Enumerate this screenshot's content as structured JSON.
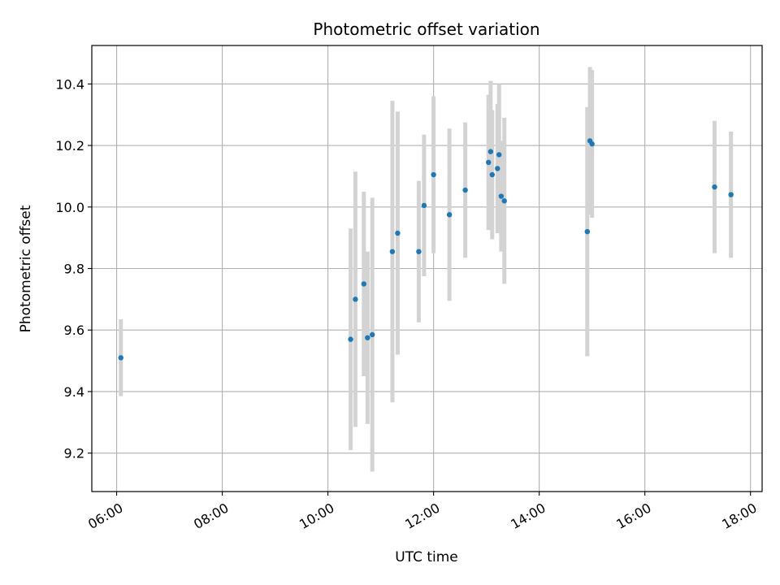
{
  "chart_data": {
    "type": "scatter",
    "title": "Photometric offset variation",
    "xlabel": "UTC time",
    "ylabel": "Photometric offset",
    "x_unit": "hours UTC",
    "xlim": [
      5.53,
      18.22
    ],
    "ylim": [
      9.075,
      10.525
    ],
    "x_ticks": [
      {
        "value": 6,
        "label": "06:00"
      },
      {
        "value": 8,
        "label": "08:00"
      },
      {
        "value": 10,
        "label": "10:00"
      },
      {
        "value": 12,
        "label": "12:00"
      },
      {
        "value": 14,
        "label": "14:00"
      },
      {
        "value": 16,
        "label": "16:00"
      },
      {
        "value": 18,
        "label": "18:00"
      }
    ],
    "y_ticks": [
      {
        "value": 9.2,
        "label": "9.2"
      },
      {
        "value": 9.4,
        "label": "9.4"
      },
      {
        "value": 9.6,
        "label": "9.6"
      },
      {
        "value": 9.8,
        "label": "9.8"
      },
      {
        "value": 10.0,
        "label": "10.0"
      },
      {
        "value": 10.2,
        "label": "10.2"
      },
      {
        "value": 10.4,
        "label": "10.4"
      }
    ],
    "grid": true,
    "x_tick_rotation_deg": 30,
    "point_color": "#1f77b4",
    "errorbar_color": "#d3d3d3",
    "points": [
      {
        "x": 6.08,
        "y": 9.51,
        "ylo": 9.385,
        "yhi": 9.635
      },
      {
        "x": 10.43,
        "y": 9.57,
        "ylo": 9.21,
        "yhi": 9.93
      },
      {
        "x": 10.52,
        "y": 9.7,
        "ylo": 9.285,
        "yhi": 10.115
      },
      {
        "x": 10.68,
        "y": 9.75,
        "ylo": 9.45,
        "yhi": 10.05
      },
      {
        "x": 10.75,
        "y": 9.575,
        "ylo": 9.295,
        "yhi": 9.855
      },
      {
        "x": 10.84,
        "y": 9.585,
        "ylo": 9.14,
        "yhi": 10.03
      },
      {
        "x": 11.22,
        "y": 9.855,
        "ylo": 9.365,
        "yhi": 10.345
      },
      {
        "x": 11.32,
        "y": 9.915,
        "ylo": 9.52,
        "yhi": 10.31
      },
      {
        "x": 11.72,
        "y": 9.855,
        "ylo": 9.625,
        "yhi": 10.085
      },
      {
        "x": 11.82,
        "y": 10.005,
        "ylo": 9.775,
        "yhi": 10.235
      },
      {
        "x": 12.0,
        "y": 10.105,
        "ylo": 9.85,
        "yhi": 10.36
      },
      {
        "x": 12.3,
        "y": 9.975,
        "ylo": 9.695,
        "yhi": 10.255
      },
      {
        "x": 12.6,
        "y": 10.055,
        "ylo": 9.835,
        "yhi": 10.275
      },
      {
        "x": 13.04,
        "y": 10.145,
        "ylo": 9.925,
        "yhi": 10.365
      },
      {
        "x": 13.08,
        "y": 10.18,
        "ylo": 9.95,
        "yhi": 10.41
      },
      {
        "x": 13.11,
        "y": 10.105,
        "ylo": 9.895,
        "yhi": 10.315
      },
      {
        "x": 13.21,
        "y": 10.125,
        "ylo": 9.915,
        "yhi": 10.335
      },
      {
        "x": 13.24,
        "y": 10.17,
        "ylo": 9.94,
        "yhi": 10.4
      },
      {
        "x": 13.28,
        "y": 10.035,
        "ylo": 9.855,
        "yhi": 10.215
      },
      {
        "x": 13.34,
        "y": 10.02,
        "ylo": 9.75,
        "yhi": 10.29
      },
      {
        "x": 14.91,
        "y": 9.92,
        "ylo": 9.515,
        "yhi": 10.325
      },
      {
        "x": 14.96,
        "y": 10.215,
        "ylo": 9.975,
        "yhi": 10.455
      },
      {
        "x": 15.0,
        "y": 10.205,
        "ylo": 9.965,
        "yhi": 10.445
      },
      {
        "x": 17.32,
        "y": 10.065,
        "ylo": 9.85,
        "yhi": 10.28
      },
      {
        "x": 17.63,
        "y": 10.04,
        "ylo": 9.835,
        "yhi": 10.245
      }
    ]
  }
}
